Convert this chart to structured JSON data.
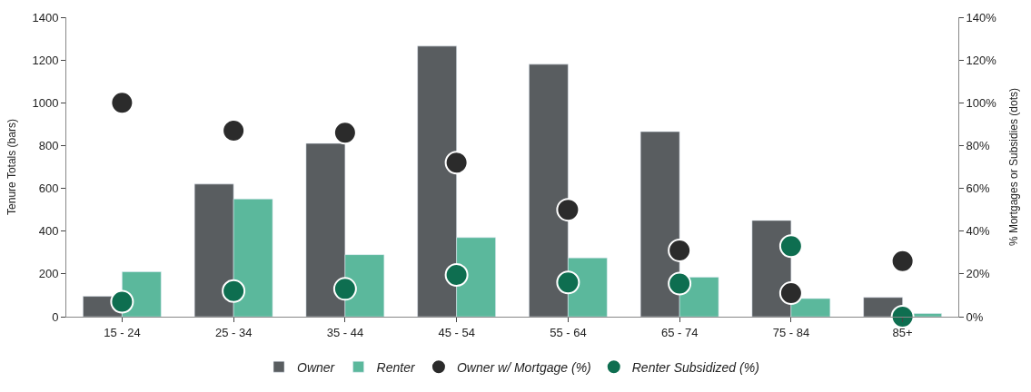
{
  "chart_data": {
    "type": "bar",
    "ylabel": "Tenure Totals (bars)",
    "y2label": "% Mortgages or Subsidies (dots)",
    "categories": [
      "15 - 24",
      "25 - 34",
      "35 - 44",
      "45 - 54",
      "55 - 64",
      "65 - 74",
      "75 - 84",
      "85+"
    ],
    "series": [
      {
        "name": "Owner",
        "color": "#595d60",
        "values": [
          95,
          620,
          810,
          1265,
          1180,
          865,
          450,
          90
        ]
      },
      {
        "name": "Renter",
        "color": "#5bb89c",
        "values": [
          210,
          550,
          290,
          370,
          275,
          185,
          85,
          15
        ]
      },
      {
        "name": "Owner w/ Mortgage (%)",
        "type": "scatter",
        "axis": "y2",
        "color": "#2b2b2b",
        "values": [
          100,
          87,
          86,
          72,
          50,
          31,
          11,
          26
        ]
      },
      {
        "name": "Renter Subsidized (%)",
        "type": "scatter",
        "axis": "y2",
        "color": "#0e6e50",
        "values": [
          7,
          12,
          13,
          19.5,
          16,
          15.5,
          33,
          0
        ]
      }
    ],
    "ylim": [
      0,
      1400
    ],
    "yticks": [
      0,
      200,
      400,
      600,
      800,
      1000,
      1200,
      1400
    ],
    "y2lim": [
      0,
      140
    ],
    "y2ticks": [
      {
        "value": 0,
        "label": "0%"
      },
      {
        "value": 20,
        "label": "20%"
      },
      {
        "value": 40,
        "label": "40%"
      },
      {
        "value": 60,
        "label": "60%"
      },
      {
        "value": 80,
        "label": "80%"
      },
      {
        "value": 100,
        "label": "100%"
      },
      {
        "value": 120,
        "label": "120%"
      },
      {
        "value": 140,
        "label": "140%"
      }
    ],
    "legend": "bottom",
    "marker": "circle"
  }
}
